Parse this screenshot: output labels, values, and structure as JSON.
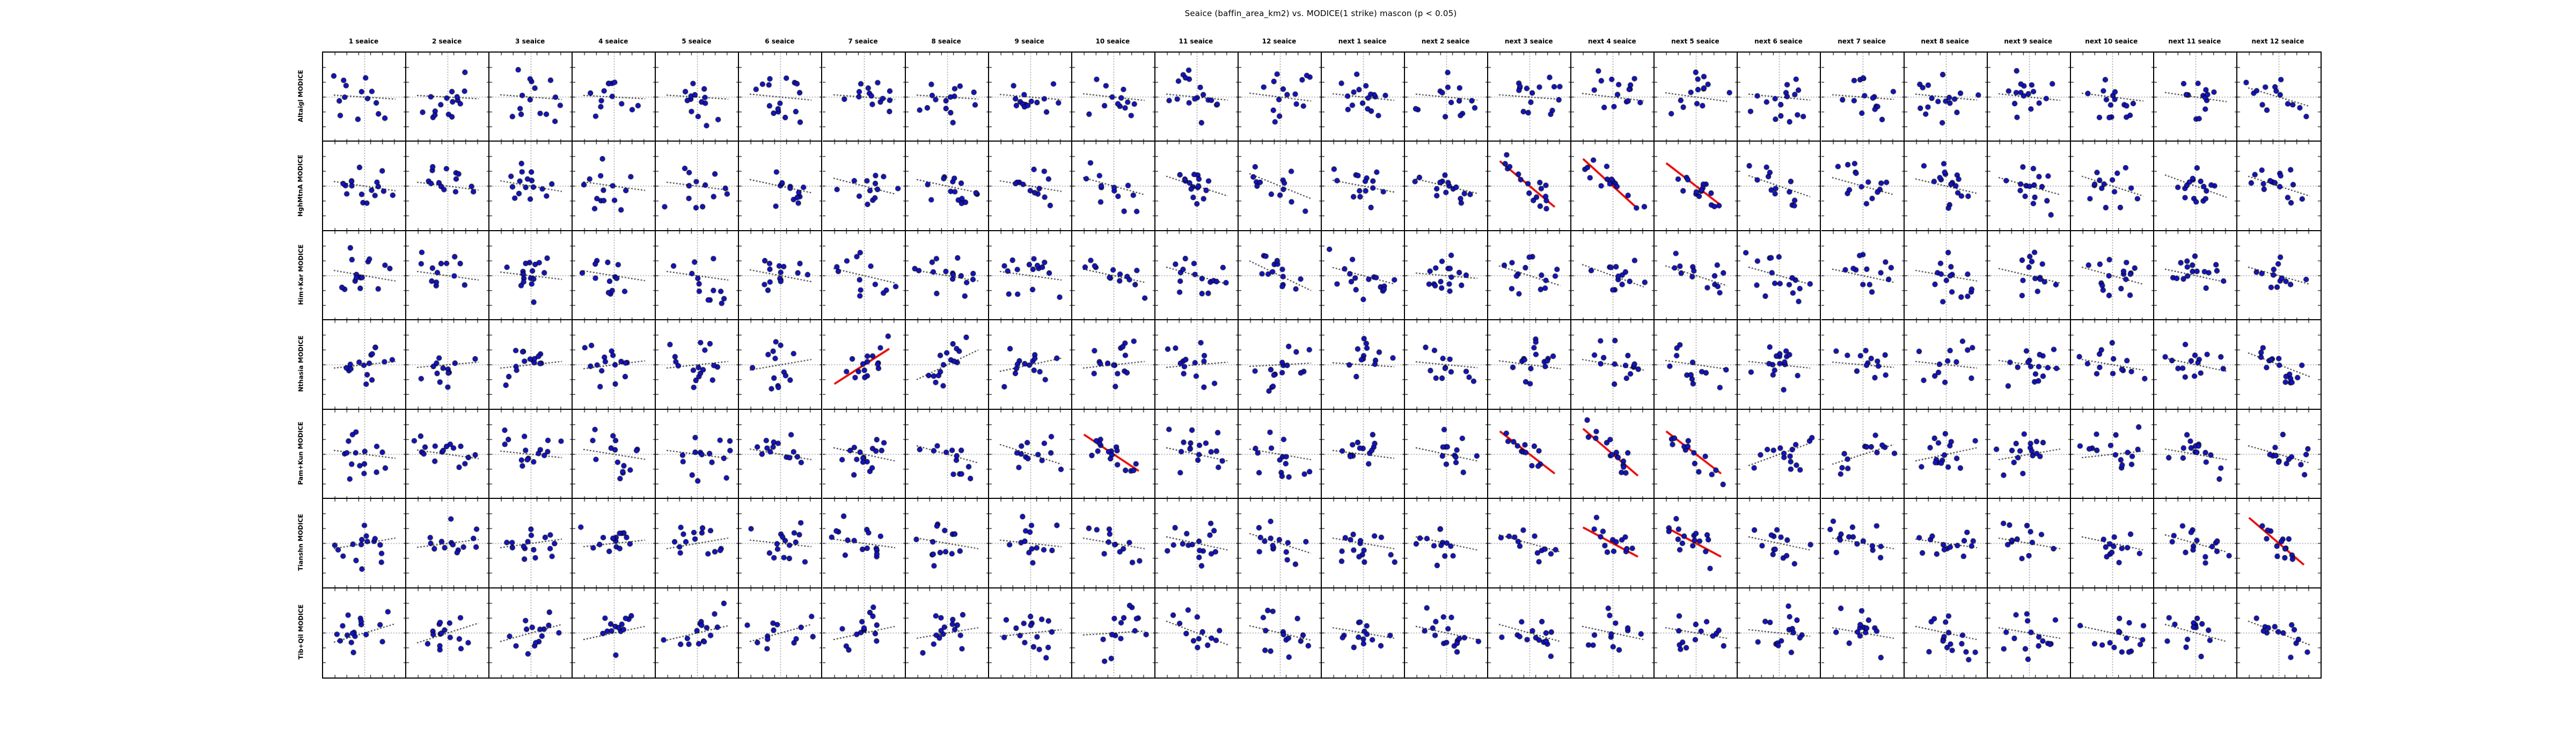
{
  "title": "Seaice (baffin_area_km2) vs. MODICE(1 strike) mascon (p < 0.05)",
  "chart_data": {
    "type": "scatter",
    "layout": "small-multiples matrix, 7 rows x 24 columns, shared black cell borders, no numeric tick labels",
    "title": "Seaice (baffin_area_km2) vs. MODICE(1 strike) mascon (p < 0.05)",
    "columns": [
      "1 seaice",
      "2 seaice",
      "3 seaice",
      "4 seaice",
      "5 seaice",
      "6 seaice",
      "7 seaice",
      "8 seaice",
      "9 seaice",
      "10 seaice",
      "11 seaice",
      "12 seaice",
      "next 1 seaice",
      "next 2 seaice",
      "next 3 seaice",
      "next 4 seaice",
      "next 5 seaice",
      "next 6 seaice",
      "next 7 seaice",
      "next 8 seaice",
      "next 9 seaice",
      "next 10 seaice",
      "next 11 seaice",
      "next 12 seaice"
    ],
    "rows": [
      "Altaigl MODICE",
      "HghMtnA MODICE",
      "Him+Kar MODICE",
      "Nthasia MODICE",
      "Pam+Kun MODICE",
      "Tianshn MODICE",
      "Tib+Qil MODICE"
    ],
    "cell_features": {
      "points": "approx. 12-18 dark blue circular markers per cell; exact values not labeled on axes, positions estimated",
      "crosshair": "dotted black vertical and horizontal reference lines through cell center",
      "ticks": "short inward minor ticks on all four edges of every cell",
      "trend_line": "dotted black fitted line when not significant; thick solid red line when p < 0.05"
    },
    "trend_slopes_normalized": [
      [
        -0.06,
        -0.05,
        -0.07,
        -0.05,
        -0.06,
        -0.09,
        -0.07,
        -0.06,
        -0.08,
        -0.1,
        -0.09,
        -0.12,
        -0.1,
        -0.09,
        -0.07,
        -0.11,
        -0.13,
        -0.09,
        -0.07,
        -0.09,
        -0.1,
        -0.12,
        -0.14,
        -0.28
      ],
      [
        -0.14,
        -0.12,
        -0.16,
        -0.13,
        -0.12,
        -0.2,
        -0.24,
        -0.2,
        -0.16,
        -0.26,
        -0.3,
        -0.38,
        -0.18,
        -0.22,
        -0.78,
        -0.85,
        -0.72,
        -0.32,
        -0.26,
        -0.22,
        -0.26,
        -0.3,
        -0.34,
        -0.3
      ],
      [
        -0.16,
        -0.13,
        -0.11,
        -0.15,
        -0.13,
        -0.18,
        -0.22,
        -0.16,
        -0.13,
        -0.2,
        -0.26,
        -0.45,
        -0.25,
        -0.08,
        -0.3,
        -0.34,
        -0.3,
        -0.26,
        -0.2,
        -0.16,
        -0.22,
        -0.26,
        -0.2,
        -0.26
      ],
      [
        0.1,
        0.08,
        0.1,
        0.12,
        0.1,
        0.16,
        0.6,
        0.45,
        0.2,
        0.1,
        0.08,
        0.05,
        -0.06,
        -0.09,
        -0.12,
        -0.16,
        -0.13,
        -0.1,
        -0.08,
        -0.1,
        -0.13,
        -0.16,
        -0.2,
        -0.36
      ],
      [
        -0.12,
        -0.13,
        -0.1,
        -0.15,
        -0.12,
        -0.16,
        -0.2,
        -0.26,
        -0.3,
        -0.62,
        -0.2,
        -0.16,
        -0.12,
        -0.2,
        -0.72,
        -0.8,
        -0.72,
        0.34,
        0.3,
        0.2,
        0.16,
        0.1,
        -0.16,
        -0.26
      ],
      [
        0.16,
        0.12,
        0.13,
        0.1,
        0.16,
        -0.1,
        -0.13,
        -0.16,
        -0.1,
        -0.16,
        -0.2,
        -0.3,
        -0.16,
        -0.2,
        -0.26,
        -0.5,
        -0.5,
        -0.2,
        -0.16,
        -0.13,
        -0.16,
        -0.2,
        -0.26,
        -0.8
      ],
      [
        0.28,
        0.3,
        0.26,
        0.2,
        0.22,
        0.26,
        0.2,
        0.16,
        0.1,
        0.06,
        -0.36,
        -0.22,
        -0.16,
        -0.2,
        -0.26,
        -0.2,
        -0.16,
        -0.1,
        -0.16,
        -0.2,
        -0.16,
        -0.2,
        -0.26,
        -0.36
      ]
    ],
    "significant_red_cells": [
      {
        "row_index": 1,
        "col_index": 14,
        "row": "HghMtnA MODICE",
        "col": "next 3 seaice"
      },
      {
        "row_index": 1,
        "col_index": 15,
        "row": "HghMtnA MODICE",
        "col": "next 4 seaice"
      },
      {
        "row_index": 1,
        "col_index": 16,
        "row": "HghMtnA MODICE",
        "col": "next 5 seaice"
      },
      {
        "row_index": 3,
        "col_index": 6,
        "row": "Nthasia MODICE",
        "col": "7 seaice"
      },
      {
        "row_index": 4,
        "col_index": 9,
        "row": "Pam+Kun MODICE",
        "col": "10 seaice"
      },
      {
        "row_index": 4,
        "col_index": 14,
        "row": "Pam+Kun MODICE",
        "col": "next 3 seaice"
      },
      {
        "row_index": 4,
        "col_index": 15,
        "row": "Pam+Kun MODICE",
        "col": "next 4 seaice"
      },
      {
        "row_index": 4,
        "col_index": 16,
        "row": "Pam+Kun MODICE",
        "col": "next 5 seaice"
      },
      {
        "row_index": 5,
        "col_index": 15,
        "row": "Tianshn MODICE",
        "col": "next 4 seaice"
      },
      {
        "row_index": 5,
        "col_index": 16,
        "row": "Tianshn MODICE",
        "col": "next 5 seaice"
      },
      {
        "row_index": 5,
        "col_index": 23,
        "row": "Tianshn MODICE",
        "col": "next 12 seaice"
      }
    ],
    "colors": {
      "point_fill": "#1313c4",
      "point_edge": "#000000",
      "trend_dotted": "#111111",
      "trend_significant": "#e60000",
      "crosshair_dotted": "#444444",
      "grid_border": "#000000",
      "background": "#ffffff"
    }
  }
}
